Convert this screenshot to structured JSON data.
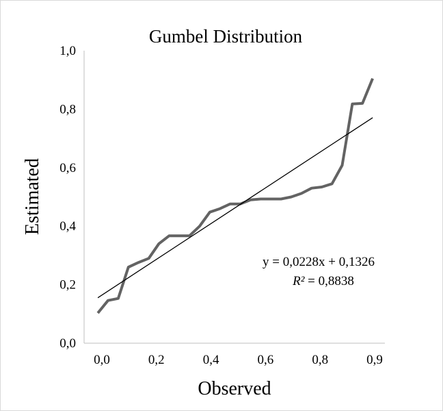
{
  "chart_data": {
    "type": "line",
    "title": "Gumbel Distribution",
    "xlabel": "Observed",
    "ylabel": "Estimated",
    "x_tick_labels": [
      "0,0",
      "0,2",
      "0,4",
      "0,6",
      "0,8",
      "0,9"
    ],
    "y_tick_labels": [
      "0,0",
      "0,2",
      "0,4",
      "0,6",
      "0,8",
      "1,0"
    ],
    "ylim": [
      0,
      1
    ],
    "grid": false,
    "legend": "none",
    "series": [
      {
        "color": "#636363",
        "points": [
          [
            1,
            0.103
          ],
          [
            2,
            0.146
          ],
          [
            3,
            0.153
          ],
          [
            4,
            0.26
          ],
          [
            5,
            0.276
          ],
          [
            6,
            0.29
          ],
          [
            7,
            0.34
          ],
          [
            8,
            0.367
          ],
          [
            9,
            0.367
          ],
          [
            10,
            0.367
          ],
          [
            11,
            0.4
          ],
          [
            12,
            0.448
          ],
          [
            13,
            0.46
          ],
          [
            14,
            0.476
          ],
          [
            15,
            0.476
          ],
          [
            16,
            0.49
          ],
          [
            17,
            0.493
          ],
          [
            18,
            0.493
          ],
          [
            19,
            0.493
          ],
          [
            20,
            0.5
          ],
          [
            21,
            0.512
          ],
          [
            22,
            0.53
          ],
          [
            23,
            0.534
          ],
          [
            24,
            0.545
          ],
          [
            25,
            0.608
          ],
          [
            26,
            0.818
          ],
          [
            27,
            0.82
          ],
          [
            28,
            0.905
          ]
        ]
      }
    ],
    "trendline": {
      "slope": 0.0228,
      "intercept": 0.1326,
      "x_start": 1,
      "x_end": 28,
      "color": "#000000"
    },
    "annotations": {
      "equation": "y = 0,0228x + 0,1326",
      "r2_prefix": "R²",
      "r2_value": " = 0,8838"
    }
  }
}
